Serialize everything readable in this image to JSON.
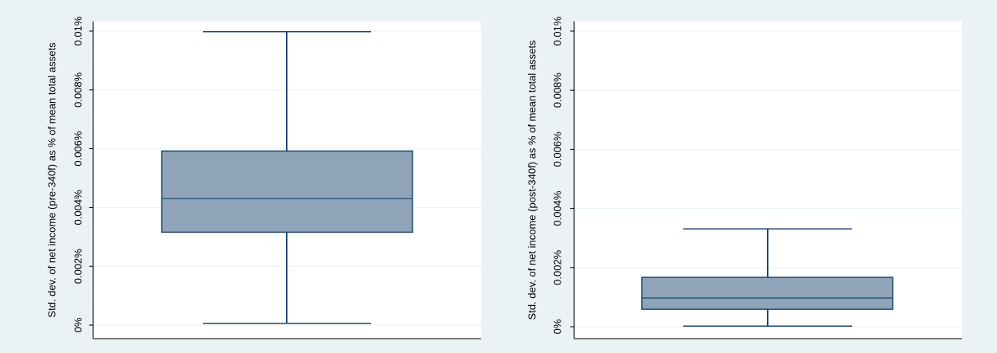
{
  "colors": {
    "outer_background": "#eaf2f3",
    "plot_background": "#ffffff",
    "grid": "#eaf2f3",
    "box_fill": "#8fa4b8",
    "line": "#1a476f",
    "axis": "#000000",
    "text": "#000000"
  },
  "chart_data": [
    {
      "type": "box",
      "ylabel": "Std. dev. of net income (pre-340f) as % of mean total assets",
      "ylim": [
        0,
        0.01
      ],
      "yticks": [
        0,
        0.002,
        0.004,
        0.006,
        0.008,
        0.01
      ],
      "ytick_labels": [
        "0%",
        "0.002%",
        "0.004%",
        "0.006%",
        "0.008%",
        "0.01%"
      ],
      "grid": true,
      "box": {
        "min": 6e-05,
        "q1": 0.00316,
        "median": 0.0043,
        "q3": 0.00592,
        "max": 0.00998
      }
    },
    {
      "type": "box",
      "ylabel": "Std. dev. of net income (post-340f) as % of mean total assets",
      "ylim": [
        0,
        0.01
      ],
      "yticks": [
        0,
        0.002,
        0.004,
        0.006,
        0.008,
        0.01
      ],
      "ytick_labels": [
        "0%",
        "0.002%",
        "0.004%",
        "0.006%",
        "0.008%",
        "0.01%"
      ],
      "grid": true,
      "box": {
        "min": 2e-05,
        "q1": 0.00059,
        "median": 0.00097,
        "q3": 0.00167,
        "max": 0.00331
      }
    }
  ]
}
